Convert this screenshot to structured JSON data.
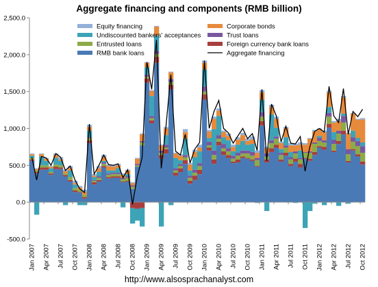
{
  "chart_data": {
    "type": "bar",
    "stacked": true,
    "title": "Aggregate financing and components (RMB billion)",
    "source_label": "http://www.alsosprachanalyst.com",
    "ylim": [
      -500,
      2500
    ],
    "yticks": [
      "2,500.0",
      "2,000.0",
      "1,500.0",
      "1,000.0",
      "500.0",
      "0.0",
      "-500.0"
    ],
    "ytick_values": [
      2500,
      2000,
      1500,
      1000,
      500,
      0,
      -500
    ],
    "grid": false,
    "legend_position": "top-left",
    "xtick_labels": [
      "Jan 2007",
      "Apr 2007",
      "Jul 2007",
      "Oct 2007",
      "Jan 2008",
      "Apr 2008",
      "Jul 2008",
      "Oct 2008",
      "Jan 2009",
      "Apr 2009",
      "Jul 2009",
      "Oct 2009",
      "Jan 2010",
      "Apr 2010",
      "Jul 2010",
      "Oct 2010",
      "Jan 2011",
      "Apr 2011",
      "Jul 2011",
      "Oct 2011",
      "Jan 2012",
      "Apr 2012",
      "Jul 2012",
      "Oct 2012"
    ],
    "categories": [
      "Jan 2007",
      "Feb 2007",
      "Mar 2007",
      "Apr 2007",
      "May 2007",
      "Jun 2007",
      "Jul 2007",
      "Aug 2007",
      "Sep 2007",
      "Oct 2007",
      "Nov 2007",
      "Dec 2007",
      "Jan 2008",
      "Feb 2008",
      "Mar 2008",
      "Apr 2008",
      "May 2008",
      "Jun 2008",
      "Jul 2008",
      "Aug 2008",
      "Sep 2008",
      "Oct 2008",
      "Nov 2008",
      "Dec 2008",
      "Jan 2009",
      "Feb 2009",
      "Mar 2009",
      "Apr 2009",
      "May 2009",
      "Jun 2009",
      "Jul 2009",
      "Aug 2009",
      "Sep 2009",
      "Oct 2009",
      "Nov 2009",
      "Dec 2009",
      "Jan 2010",
      "Feb 2010",
      "Mar 2010",
      "Apr 2010",
      "May 2010",
      "Jun 2010",
      "Jul 2010",
      "Aug 2010",
      "Sep 2010",
      "Oct 2010",
      "Nov 2010",
      "Dec 2010",
      "Jan 2011",
      "Feb 2011",
      "Mar 2011",
      "Apr 2011",
      "May 2011",
      "Jun 2011",
      "Jul 2011",
      "Aug 2011",
      "Sep 2011",
      "Oct 2011",
      "Nov 2011",
      "Dec 2011",
      "Jan 2012",
      "Feb 2012",
      "Mar 2012",
      "Apr 2012",
      "May 2012",
      "Jun 2012",
      "Jul 2012",
      "Aug 2012",
      "Sep 2012",
      "Oct 2012"
    ],
    "series": [
      {
        "name": "RMB bank loans",
        "color": "#4a7ab5",
        "values": [
          560,
          390,
          440,
          440,
          370,
          450,
          450,
          350,
          280,
          140,
          130,
          50,
          800,
          240,
          280,
          470,
          320,
          330,
          330,
          270,
          280,
          180,
          480,
          770,
          1620,
          1070,
          1890,
          590,
          660,
          1530,
          360,
          410,
          520,
          250,
          300,
          380,
          1390,
          700,
          520,
          770,
          640,
          600,
          530,
          540,
          600,
          590,
          560,
          480,
          1040,
          540,
          680,
          740,
          550,
          630,
          490,
          550,
          470,
          590,
          560,
          640,
          740,
          710,
          1010,
          680,
          790,
          920,
          540,
          700,
          620,
          510
        ]
      },
      {
        "name": "Foreign currency bank loans",
        "color": "#a73f3e",
        "values": [
          20,
          20,
          30,
          30,
          20,
          30,
          20,
          20,
          20,
          20,
          10,
          20,
          40,
          30,
          20,
          20,
          20,
          20,
          20,
          10,
          10,
          -80,
          -90,
          -80,
          60,
          40,
          80,
          50,
          60,
          60,
          40,
          50,
          50,
          40,
          60,
          60,
          70,
          40,
          60,
          50,
          50,
          40,
          20,
          40,
          20,
          10,
          20,
          10,
          60,
          40,
          50,
          40,
          30,
          40,
          30,
          40,
          50,
          10,
          30,
          40,
          20,
          40,
          50,
          20,
          40,
          50,
          20,
          20,
          30,
          40
        ]
      },
      {
        "name": "Entrusted loans",
        "color": "#8daa48",
        "values": [
          20,
          20,
          30,
          30,
          20,
          30,
          30,
          20,
          40,
          30,
          30,
          30,
          30,
          20,
          30,
          30,
          30,
          30,
          30,
          30,
          40,
          30,
          20,
          40,
          20,
          30,
          40,
          30,
          20,
          40,
          30,
          30,
          40,
          40,
          40,
          50,
          40,
          30,
          60,
          40,
          40,
          50,
          40,
          50,
          40,
          60,
          50,
          80,
          60,
          40,
          70,
          80,
          60,
          70,
          60,
          70,
          60,
          70,
          80,
          110,
          70,
          60,
          100,
          90,
          100,
          110,
          90,
          100,
          110,
          120
        ]
      },
      {
        "name": "Trust loans",
        "color": "#7957a0",
        "values": [
          0,
          0,
          0,
          0,
          0,
          0,
          0,
          0,
          0,
          0,
          0,
          0,
          10,
          10,
          20,
          20,
          20,
          20,
          20,
          20,
          20,
          20,
          20,
          20,
          30,
          30,
          40,
          30,
          40,
          40,
          30,
          30,
          30,
          30,
          40,
          40,
          70,
          50,
          60,
          50,
          60,
          40,
          40,
          40,
          40,
          40,
          50,
          30,
          60,
          40,
          40,
          30,
          30,
          30,
          30,
          30,
          20,
          10,
          20,
          20,
          40,
          30,
          50,
          60,
          40,
          90,
          70,
          60,
          70,
          90
        ]
      },
      {
        "name": "Undiscounted bankers' acceptances",
        "color": "#3da3b7",
        "values": [
          30,
          -170,
          120,
          60,
          50,
          90,
          60,
          -40,
          90,
          50,
          -40,
          -40,
          90,
          40,
          60,
          20,
          40,
          30,
          60,
          -70,
          30,
          -210,
          -160,
          -250,
          100,
          270,
          210,
          -330,
          130,
          -40,
          140,
          50,
          220,
          70,
          170,
          160,
          230,
          50,
          290,
          260,
          90,
          110,
          60,
          110,
          130,
          80,
          110,
          -10,
          170,
          -120,
          350,
          120,
          50,
          110,
          70,
          -10,
          100,
          -350,
          -120,
          -20,
          30,
          -40,
          80,
          100,
          -50,
          30,
          -20,
          90,
          40,
          50
        ]
      },
      {
        "name": "Corporate bonds",
        "color": "#e68a3b",
        "values": [
          20,
          20,
          30,
          30,
          20,
          40,
          20,
          30,
          30,
          20,
          30,
          40,
          50,
          20,
          50,
          50,
          60,
          50,
          40,
          40,
          50,
          30,
          70,
          90,
          60,
          70,
          120,
          70,
          90,
          90,
          60,
          60,
          90,
          80,
          70,
          50,
          90,
          90,
          140,
          70,
          70,
          60,
          60,
          70,
          80,
          50,
          60,
          70,
          100,
          70,
          100,
          120,
          80,
          120,
          90,
          80,
          80,
          100,
          170,
          150,
          90,
          110,
          200,
          130,
          130,
          220,
          210,
          230,
          250,
          310
        ]
      },
      {
        "name": "Equity financing",
        "color": "#93b0d8",
        "values": [
          10,
          10,
          10,
          10,
          10,
          20,
          30,
          20,
          30,
          30,
          20,
          30,
          30,
          20,
          30,
          30,
          20,
          20,
          20,
          20,
          10,
          10,
          10,
          10,
          10,
          10,
          10,
          10,
          20,
          10,
          10,
          20,
          40,
          20,
          30,
          40,
          30,
          20,
          30,
          30,
          20,
          30,
          30,
          30,
          30,
          30,
          40,
          30,
          30,
          20,
          30,
          30,
          20,
          20,
          30,
          20,
          30,
          20,
          10,
          20,
          10,
          20,
          20,
          20,
          30,
          20,
          10,
          10,
          10,
          20
        ]
      }
    ],
    "aggregate_series": {
      "name": "Aggregate financing",
      "color": "#000000",
      "values": [
        610,
        300,
        620,
        600,
        500,
        660,
        610,
        430,
        490,
        300,
        180,
        130,
        1060,
        380,
        500,
        640,
        510,
        500,
        520,
        330,
        440,
        -30,
        350,
        600,
        1900,
        1530,
        2200,
        460,
        1040,
        1730,
        690,
        640,
        920,
        530,
        720,
        810,
        1920,
        1000,
        1230,
        1380,
        1000,
        940,
        800,
        900,
        1000,
        860,
        930,
        700,
        1530,
        560,
        1330,
        1170,
        820,
        1030,
        800,
        790,
        890,
        420,
        750,
        960,
        1000,
        950,
        1570,
        1170,
        1080,
        1540,
        920,
        1230,
        1160,
        1260
      ]
    }
  }
}
